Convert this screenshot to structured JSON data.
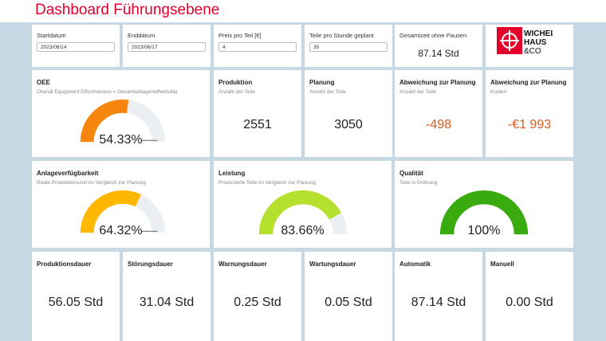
{
  "header": {
    "title": "Dashboard Führungsebene"
  },
  "filters": {
    "start": {
      "label": "Startdatum",
      "value": "2023/06/14"
    },
    "end": {
      "label": "Enddatum",
      "value": "2023/06/17"
    },
    "price": {
      "label": "Preis pro Teil [€]",
      "value": "4"
    },
    "parts_hour": {
      "label": "Teile pro Stunde geplant",
      "value": "35"
    },
    "total_time": {
      "label": "Gesamtzeit ohne Pausen",
      "value": "87.14 Std"
    }
  },
  "logo": {
    "line1": "WICHEL",
    "line2": "HAUS",
    "line3": "&CO",
    "color": "#e4002b"
  },
  "oee": {
    "title": "OEE",
    "subtitle": "Overall Equipment Effectiveness = Gesamtanlageneffektivität",
    "value": "54.33%",
    "percent": 54.33,
    "color": "#f7860f"
  },
  "produktion": {
    "title": "Produktion",
    "subtitle": "Anzahl der Teile",
    "value": "2551"
  },
  "planung": {
    "title": "Planung",
    "subtitle": "Anzahl der Teile",
    "value": "3050"
  },
  "abw_teile": {
    "title": "Abweichung zur Planung",
    "subtitle": "Anzahl der Teile",
    "value": "-498"
  },
  "abw_kosten": {
    "title": "Abweichung zur Planung",
    "subtitle": "Kosten",
    "value": "-€1 993"
  },
  "verfuegbarkeit": {
    "title": "Anlageverfügbarkeit",
    "subtitle": "Reale Produktionszeit im Vergleich zur Planung",
    "value": "64.32%",
    "percent": 64.32,
    "color": "#ffb700"
  },
  "leistung": {
    "title": "Leistung",
    "subtitle": "Produzierte Teile im Vergleich zur Planung",
    "value": "83.66%",
    "percent": 83.66,
    "color": "#b5e02d"
  },
  "qualitaet": {
    "title": "Qualität",
    "subtitle": "Teile in Ordnung",
    "value": "100%",
    "percent": 100,
    "color": "#3aab0e"
  },
  "durations": [
    {
      "title": "Produktionsdauer",
      "value": "56.05 Std"
    },
    {
      "title": "Störungsdauer",
      "value": "31.04 Std"
    },
    {
      "title": "Warnungsdauer",
      "value": "0.25 Std"
    },
    {
      "title": "Wartungsdauer",
      "value": "0.05 Std"
    },
    {
      "title": "Automatik",
      "value": "87.14 Std"
    },
    {
      "title": "Manuell",
      "value": "0.00 Std"
    }
  ]
}
